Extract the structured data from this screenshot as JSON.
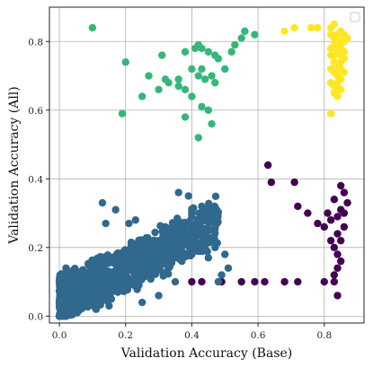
{
  "chart_data": {
    "type": "scatter",
    "xlabel": "Validation Accuracy (Base)",
    "ylabel": "Validation Accuracy (All)",
    "xlim": [
      -0.03,
      0.92
    ],
    "ylim": [
      -0.02,
      0.9
    ],
    "x_ticks": [
      "0.0",
      "0.2",
      "0.4",
      "0.6",
      "0.8"
    ],
    "x_tick_values": [
      0.0,
      0.2,
      0.4,
      0.6,
      0.8
    ],
    "y_ticks": [
      "0.0",
      "0.2",
      "0.4",
      "0.6",
      "0.8"
    ],
    "y_tick_values": [
      0.0,
      0.2,
      0.4,
      0.6,
      0.8
    ],
    "grid": true,
    "legend_placement": "top-right",
    "series": [
      {
        "color": "#440154",
        "points": [
          [
            0.63,
            0.44
          ],
          [
            0.64,
            0.39
          ],
          [
            0.71,
            0.39
          ],
          [
            0.72,
            0.32
          ],
          [
            0.75,
            0.3
          ],
          [
            0.78,
            0.27
          ],
          [
            0.8,
            0.26
          ],
          [
            0.82,
            0.22
          ],
          [
            0.83,
            0.34
          ],
          [
            0.84,
            0.29
          ],
          [
            0.85,
            0.31
          ],
          [
            0.86,
            0.36
          ],
          [
            0.85,
            0.38
          ],
          [
            0.84,
            0.24
          ],
          [
            0.83,
            0.2
          ],
          [
            0.84,
            0.18
          ],
          [
            0.85,
            0.16
          ],
          [
            0.84,
            0.14
          ],
          [
            0.83,
            0.12
          ],
          [
            0.82,
            0.28
          ],
          [
            0.81,
            0.3
          ],
          [
            0.86,
            0.26
          ],
          [
            0.85,
            0.22
          ],
          [
            0.83,
            0.1
          ],
          [
            0.84,
            0.06
          ],
          [
            0.8,
            0.1
          ],
          [
            0.72,
            0.1
          ],
          [
            0.68,
            0.1
          ],
          [
            0.62,
            0.1
          ],
          [
            0.59,
            0.1
          ],
          [
            0.55,
            0.1
          ],
          [
            0.49,
            0.1
          ],
          [
            0.43,
            0.1
          ],
          [
            0.4,
            0.1
          ],
          [
            0.87,
            0.33
          ],
          [
            0.86,
            0.3
          ]
        ]
      },
      {
        "color": "#31688e",
        "points": []
      },
      {
        "color": "#35b779",
        "points": [
          [
            0.1,
            0.84
          ],
          [
            0.2,
            0.74
          ],
          [
            0.27,
            0.7
          ],
          [
            0.31,
            0.76
          ],
          [
            0.38,
            0.77
          ],
          [
            0.41,
            0.78
          ],
          [
            0.42,
            0.79
          ],
          [
            0.43,
            0.78
          ],
          [
            0.45,
            0.77
          ],
          [
            0.47,
            0.76
          ],
          [
            0.48,
            0.75
          ],
          [
            0.5,
            0.72
          ],
          [
            0.52,
            0.77
          ],
          [
            0.53,
            0.79
          ],
          [
            0.55,
            0.81
          ],
          [
            0.56,
            0.83
          ],
          [
            0.59,
            0.82
          ],
          [
            0.32,
            0.69
          ],
          [
            0.33,
            0.68
          ],
          [
            0.36,
            0.67
          ],
          [
            0.38,
            0.66
          ],
          [
            0.4,
            0.64
          ],
          [
            0.42,
            0.7
          ],
          [
            0.43,
            0.72
          ],
          [
            0.44,
            0.69
          ],
          [
            0.46,
            0.7
          ],
          [
            0.36,
            0.69
          ],
          [
            0.3,
            0.66
          ],
          [
            0.25,
            0.64
          ],
          [
            0.19,
            0.59
          ],
          [
            0.38,
            0.58
          ],
          [
            0.43,
            0.61
          ],
          [
            0.45,
            0.6
          ],
          [
            0.46,
            0.56
          ],
          [
            0.42,
            0.52
          ],
          [
            0.4,
            0.72
          ],
          [
            0.47,
            0.68
          ]
        ]
      },
      {
        "color": "#fde725",
        "points": [
          [
            0.68,
            0.83
          ],
          [
            0.71,
            0.84
          ],
          [
            0.76,
            0.84
          ],
          [
            0.78,
            0.84
          ],
          [
            0.82,
            0.84
          ],
          [
            0.83,
            0.85
          ],
          [
            0.85,
            0.83
          ],
          [
            0.86,
            0.82
          ],
          [
            0.87,
            0.81
          ],
          [
            0.84,
            0.8
          ],
          [
            0.83,
            0.79
          ],
          [
            0.82,
            0.78
          ],
          [
            0.84,
            0.77
          ],
          [
            0.85,
            0.76
          ],
          [
            0.86,
            0.75
          ],
          [
            0.83,
            0.74
          ],
          [
            0.84,
            0.73
          ],
          [
            0.85,
            0.72
          ],
          [
            0.83,
            0.71
          ],
          [
            0.84,
            0.7
          ],
          [
            0.85,
            0.69
          ],
          [
            0.82,
            0.68
          ],
          [
            0.83,
            0.67
          ],
          [
            0.84,
            0.66
          ],
          [
            0.83,
            0.65
          ],
          [
            0.84,
            0.64
          ],
          [
            0.82,
            0.59
          ],
          [
            0.86,
            0.8
          ],
          [
            0.85,
            0.78
          ],
          [
            0.82,
            0.82
          ],
          [
            0.83,
            0.81
          ],
          [
            0.84,
            0.79
          ],
          [
            0.86,
            0.77
          ],
          [
            0.82,
            0.76
          ],
          [
            0.85,
            0.74
          ],
          [
            0.86,
            0.71
          ],
          [
            0.82,
            0.72
          ],
          [
            0.84,
            0.68
          ],
          [
            0.85,
            0.66
          ],
          [
            0.83,
            0.76
          ],
          [
            0.84,
            0.82
          ],
          [
            0.85,
            0.8
          ]
        ]
      }
    ]
  }
}
